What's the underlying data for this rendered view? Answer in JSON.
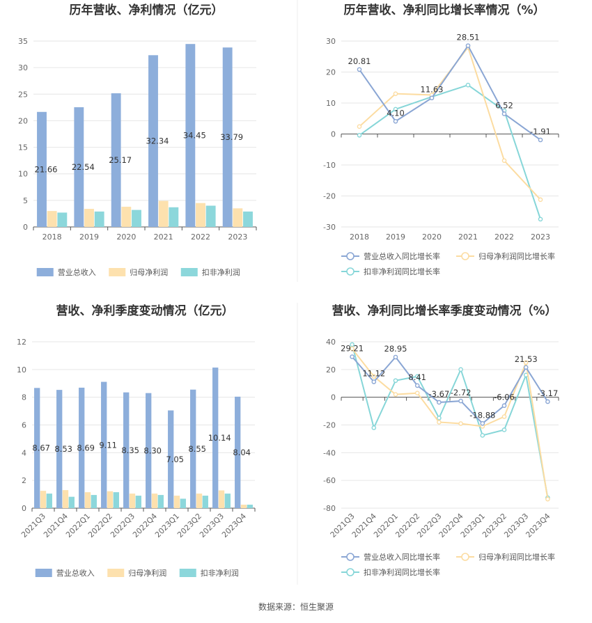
{
  "colors": {
    "revenue": "#8DAEDB",
    "net_profit": "#FDE1AE",
    "deducted_profit": "#8CD7DB",
    "line_revenue": "#8AA6D4",
    "line_net": "#FCDCA1",
    "line_deducted": "#86D6D8",
    "grid": "#E6E6E6",
    "axis": "#555555"
  },
  "source": "数据来源：恒生聚源",
  "chart_data": [
    {
      "type": "bar",
      "title": "历年营收、净利情况（亿元）",
      "categories": [
        "2018",
        "2019",
        "2020",
        "2021",
        "2022",
        "2023"
      ],
      "ylim": [
        0,
        35
      ],
      "yticks": [
        0,
        5,
        10,
        15,
        20,
        25,
        30,
        35
      ],
      "legend": "bottom",
      "series": [
        {
          "name": "营业总收入",
          "values": [
            21.66,
            22.54,
            25.17,
            32.34,
            34.45,
            33.79
          ],
          "labels": [
            "21.66",
            "22.54",
            "25.17",
            "32.34",
            "34.45",
            "33.79"
          ]
        },
        {
          "name": "归母净利润",
          "values": [
            3.0,
            3.4,
            3.8,
            4.9,
            4.5,
            3.5
          ]
        },
        {
          "name": "扣非净利润",
          "values": [
            2.7,
            2.9,
            3.2,
            3.7,
            4.0,
            2.9
          ]
        }
      ]
    },
    {
      "type": "line",
      "title": "历年营收、净利同比增长率情况（%）",
      "categories": [
        "2018",
        "2019",
        "2020",
        "2021",
        "2022",
        "2023"
      ],
      "ylim": [
        -30,
        30
      ],
      "yticks": [
        -30,
        -20,
        -10,
        0,
        10,
        20,
        30
      ],
      "legend": "bottom",
      "series": [
        {
          "name": "营业总收入同比增长率",
          "values": [
            20.81,
            4.1,
            11.63,
            28.51,
            6.52,
            -1.91
          ],
          "labels": [
            "20.81",
            "4.10",
            "11.63",
            "28.51",
            "6.52",
            "-1.91"
          ]
        },
        {
          "name": "归母净利润同比增长率",
          "values": [
            2.4,
            13.0,
            12.6,
            28.0,
            -8.6,
            -21.2
          ]
        },
        {
          "name": "扣非净利润同比增长率",
          "values": [
            -0.4,
            8.0,
            12.0,
            15.8,
            7.5,
            -27.5
          ]
        }
      ]
    },
    {
      "type": "bar",
      "title": "营收、净利季度变动情况（亿元）",
      "categories": [
        "2021Q3",
        "2021Q4",
        "2022Q1",
        "2022Q2",
        "2022Q3",
        "2022Q4",
        "2023Q1",
        "2023Q2",
        "2023Q3",
        "2023Q4"
      ],
      "ylim": [
        0,
        12
      ],
      "yticks": [
        0,
        2,
        4,
        6,
        8,
        10,
        12
      ],
      "legend": "bottom",
      "series": [
        {
          "name": "营业总收入",
          "values": [
            8.67,
            8.53,
            8.69,
            9.11,
            8.35,
            8.3,
            7.05,
            8.55,
            10.14,
            8.04
          ],
          "labels": [
            "8.67",
            "8.53",
            "8.69",
            "9.11",
            "8.35",
            "8.30",
            "7.05",
            "8.55",
            "10.14",
            "8.04"
          ]
        },
        {
          "name": "归母净利润",
          "values": [
            1.25,
            1.3,
            1.15,
            1.22,
            1.05,
            1.05,
            0.9,
            1.05,
            1.28,
            0.25
          ]
        },
        {
          "name": "扣非净利润",
          "values": [
            1.05,
            0.82,
            0.95,
            1.15,
            0.9,
            0.95,
            0.68,
            0.9,
            1.05,
            0.25
          ]
        }
      ]
    },
    {
      "type": "line",
      "title": "营收、净利同比增长率季度变动情况（%）",
      "categories": [
        "2021Q3",
        "2021Q4",
        "2022Q1",
        "2022Q2",
        "2022Q3",
        "2022Q4",
        "2023Q1",
        "2023Q2",
        "2023Q3",
        "2023Q4"
      ],
      "ylim": [
        -80,
        40
      ],
      "yticks": [
        -80,
        -60,
        -40,
        -20,
        0,
        20,
        40
      ],
      "legend": "bottom",
      "series": [
        {
          "name": "营业总收入同比增长率",
          "values": [
            29.21,
            11.12,
            28.95,
            8.41,
            -3.67,
            -2.72,
            -18.88,
            -6.06,
            21.53,
            -3.17
          ],
          "labels": [
            "29.21",
            "11.12",
            "28.95",
            "8.41",
            "-3.67",
            "-2.72",
            "-18.88",
            "-6.06",
            "21.53",
            "-3.17"
          ]
        },
        {
          "name": "归母净利润同比增长率",
          "values": [
            35.0,
            15.0,
            2.0,
            3.0,
            -18.0,
            -19.0,
            -21.0,
            -14.0,
            25.0,
            -73.5
          ]
        },
        {
          "name": "扣非净利润同比增长率",
          "values": [
            38.0,
            -22.0,
            12.0,
            15.0,
            -15.0,
            20.0,
            -27.5,
            -23.5,
            16.0,
            -72.5
          ]
        }
      ]
    }
  ]
}
